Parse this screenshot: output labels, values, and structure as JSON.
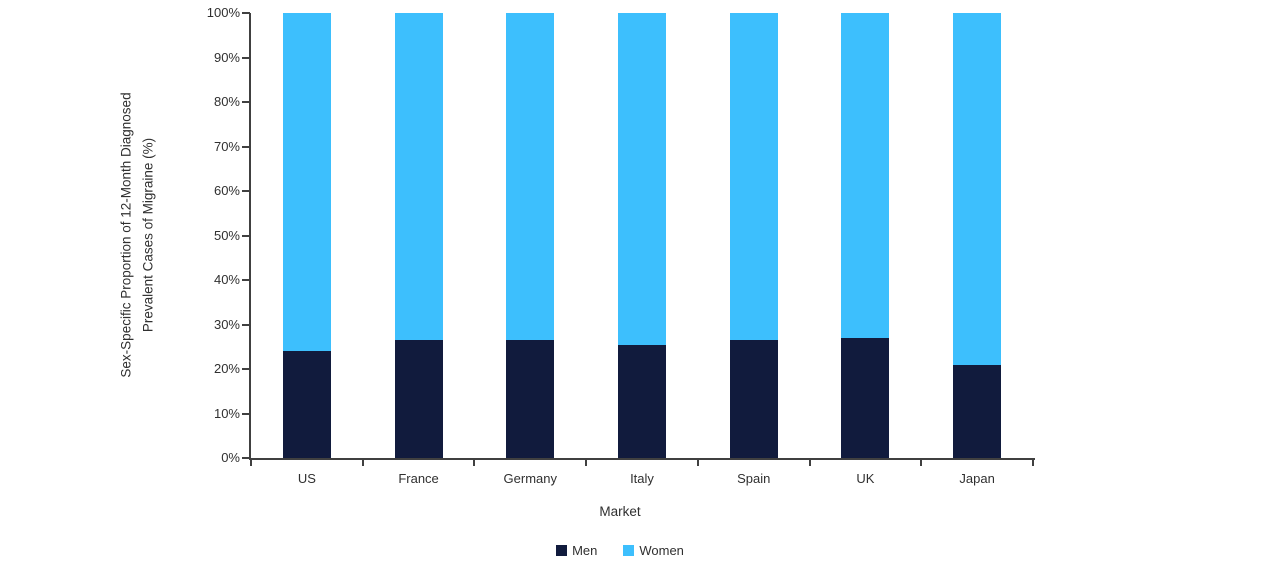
{
  "chart_data": {
    "type": "bar",
    "stacked": true,
    "categories": [
      "US",
      "France",
      "Germany",
      "Italy",
      "Spain",
      "UK",
      "Japan"
    ],
    "series": [
      {
        "name": "Men",
        "color": "#111b3d",
        "values": [
          24,
          26.5,
          26.5,
          25.5,
          26.5,
          27,
          21
        ]
      },
      {
        "name": "Women",
        "color": "#3dbffd",
        "values": [
          76,
          73.5,
          73.5,
          74.5,
          73.5,
          73,
          79
        ]
      }
    ],
    "xlabel": "Market",
    "ylabel": "Sex-Specific Proportion of 12-Month Diagnosed Prevalent Cases of Migraine (%)",
    "ylabel_lines": [
      "Sex-Specific Proportion of 12-Month Diagnosed",
      "Prevalent Cases of Migraine (%)"
    ],
    "ylim": [
      0,
      100
    ],
    "yticks": [
      "0%",
      "10%",
      "20%",
      "30%",
      "40%",
      "50%",
      "60%",
      "70%",
      "80%",
      "90%",
      "100%"
    ],
    "legend_position": "bottom",
    "grid": false,
    "axis_color": "#404040",
    "text_color": "#303030"
  }
}
